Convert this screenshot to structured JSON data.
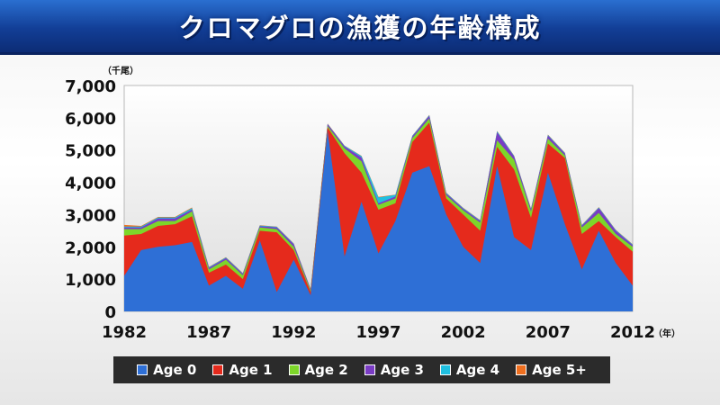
{
  "title": "クロマグロの漁獲の年齢構成",
  "chart_data": {
    "type": "area",
    "stacked": true,
    "title": "クロマグロの漁獲の年齢構成",
    "ylabel": "（千尾）",
    "xlabel_unit": "（年）",
    "ylim": [
      0,
      7000
    ],
    "yticks": [
      "7,000",
      "6,000",
      "5,000",
      "4,000",
      "3,000",
      "2,000",
      "1,000",
      "0"
    ],
    "ytick_values": [
      7000,
      6000,
      5000,
      4000,
      3000,
      2000,
      1000,
      0
    ],
    "xticks": [
      "1982",
      "1987",
      "1992",
      "1997",
      "2002",
      "2007",
      "2012"
    ],
    "xtick_values": [
      1982,
      1987,
      1992,
      1997,
      2002,
      2007,
      2012
    ],
    "grid": false,
    "legend_position": "bottom",
    "x": [
      1982,
      1983,
      1984,
      1985,
      1986,
      1987,
      1988,
      1989,
      1990,
      1991,
      1992,
      1993,
      1994,
      1995,
      1996,
      1997,
      1998,
      1999,
      2000,
      2001,
      2002,
      2003,
      2004,
      2005,
      2006,
      2007,
      2008,
      2009,
      2010,
      2011,
      2012
    ],
    "series": [
      {
        "name": "Age 0",
        "color": "#2e6fd6",
        "values": [
          1100,
          1900,
          2000,
          2050,
          2150,
          800,
          1100,
          700,
          2200,
          600,
          1600,
          500,
          5600,
          1700,
          3400,
          1800,
          2800,
          4300,
          4500,
          3000,
          2000,
          1500,
          4500,
          2300,
          1900,
          4300,
          2700,
          1300,
          2500,
          1500,
          800
        ]
      },
      {
        "name": "Age 1",
        "color": "#e52a1c",
        "values": [
          1250,
          500,
          650,
          650,
          800,
          400,
          350,
          300,
          300,
          1850,
          300,
          100,
          100,
          3200,
          900,
          1350,
          550,
          950,
          1350,
          500,
          1000,
          1000,
          600,
          2100,
          1000,
          900,
          2050,
          1100,
          300,
          800,
          1050
        ]
      },
      {
        "name": "Age 2",
        "color": "#7dd62a",
        "values": [
          200,
          150,
          150,
          100,
          150,
          100,
          150,
          120,
          100,
          100,
          100,
          50,
          50,
          150,
          350,
          150,
          150,
          120,
          130,
          100,
          130,
          250,
          200,
          300,
          200,
          150,
          80,
          200,
          250,
          100,
          150
        ]
      },
      {
        "name": "Age 3",
        "color": "#7a3cc4",
        "values": [
          50,
          50,
          80,
          80,
          50,
          50,
          50,
          40,
          40,
          50,
          80,
          30,
          50,
          60,
          120,
          50,
          60,
          50,
          80,
          50,
          50,
          50,
          250,
          100,
          60,
          100,
          60,
          50,
          150,
          100,
          50
        ]
      },
      {
        "name": "Age 4",
        "color": "#1fbfe0",
        "values": [
          30,
          30,
          30,
          30,
          50,
          20,
          20,
          20,
          20,
          20,
          20,
          10,
          10,
          20,
          40,
          180,
          50,
          20,
          20,
          20,
          20,
          20,
          30,
          20,
          20,
          20,
          20,
          20,
          20,
          20,
          20
        ]
      },
      {
        "name": "Age 5+",
        "color": "#ef6f1f",
        "values": [
          50,
          20,
          20,
          20,
          20,
          10,
          10,
          10,
          10,
          10,
          10,
          10,
          10,
          10,
          10,
          20,
          10,
          10,
          10,
          10,
          10,
          10,
          10,
          10,
          10,
          10,
          10,
          10,
          10,
          10,
          10
        ]
      }
    ]
  }
}
